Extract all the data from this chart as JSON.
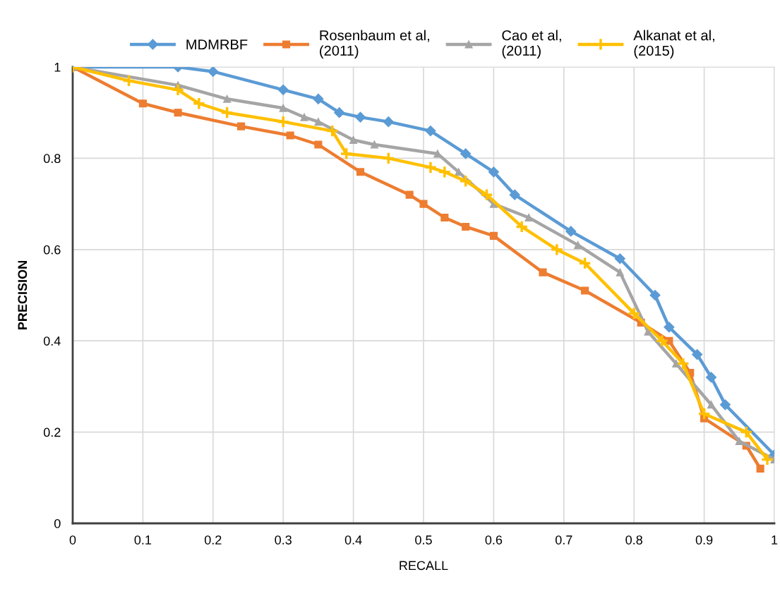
{
  "chart_data": {
    "type": "line",
    "xlabel": "RECALL",
    "ylabel": "PRECISION",
    "xlim": [
      0,
      1
    ],
    "ylim": [
      0,
      1
    ],
    "xticks": [
      0,
      0.1,
      0.2,
      0.3,
      0.4,
      0.5,
      0.6,
      0.7,
      0.8,
      0.9,
      1
    ],
    "yticks": [
      0,
      0.2,
      0.4,
      0.6,
      0.8,
      1
    ],
    "grid": true,
    "legend": "top",
    "series": [
      {
        "name": "MDMRBF",
        "color": "#5b9bd5",
        "marker": "diamond",
        "x": [
          0,
          0.15,
          0.2,
          0.3,
          0.35,
          0.38,
          0.41,
          0.45,
          0.51,
          0.56,
          0.6,
          0.63,
          0.71,
          0.78,
          0.83,
          0.85,
          0.89,
          0.91,
          0.93,
          1.0
        ],
        "values": [
          1,
          1,
          0.99,
          0.95,
          0.93,
          0.9,
          0.89,
          0.88,
          0.86,
          0.81,
          0.77,
          0.72,
          0.64,
          0.58,
          0.5,
          0.43,
          0.37,
          0.32,
          0.26,
          0.15
        ]
      },
      {
        "name": "Rosenbaum et al,\n(2011)",
        "color": "#ed7d31",
        "marker": "square",
        "x": [
          0,
          0.1,
          0.15,
          0.24,
          0.31,
          0.35,
          0.41,
          0.48,
          0.5,
          0.53,
          0.56,
          0.6,
          0.67,
          0.73,
          0.81,
          0.85,
          0.88,
          0.9,
          0.96,
          0.98
        ],
        "values": [
          1,
          0.92,
          0.9,
          0.87,
          0.85,
          0.83,
          0.77,
          0.72,
          0.7,
          0.67,
          0.65,
          0.63,
          0.55,
          0.51,
          0.44,
          0.4,
          0.33,
          0.23,
          0.17,
          0.12
        ]
      },
      {
        "name": "Cao et al,\n(2011)",
        "color": "#a5a5a5",
        "marker": "triangle",
        "x": [
          0,
          0.15,
          0.22,
          0.3,
          0.33,
          0.35,
          0.4,
          0.43,
          0.52,
          0.55,
          0.6,
          0.65,
          0.72,
          0.78,
          0.82,
          0.86,
          0.91,
          0.95,
          1.0
        ],
        "values": [
          1,
          0.96,
          0.93,
          0.91,
          0.89,
          0.88,
          0.84,
          0.83,
          0.81,
          0.77,
          0.7,
          0.67,
          0.61,
          0.55,
          0.42,
          0.35,
          0.26,
          0.18,
          0.14
        ]
      },
      {
        "name": "Alkanat et al,\n(2015)",
        "color": "#ffc000",
        "marker": "cross",
        "x": [
          0,
          0.08,
          0.15,
          0.18,
          0.22,
          0.3,
          0.37,
          0.39,
          0.45,
          0.51,
          0.53,
          0.56,
          0.59,
          0.64,
          0.69,
          0.73,
          0.8,
          0.84,
          0.87,
          0.9,
          0.96,
          0.99
        ],
        "values": [
          1,
          0.97,
          0.95,
          0.92,
          0.9,
          0.88,
          0.86,
          0.81,
          0.8,
          0.78,
          0.77,
          0.75,
          0.72,
          0.65,
          0.6,
          0.57,
          0.46,
          0.4,
          0.35,
          0.24,
          0.2,
          0.14
        ]
      }
    ]
  }
}
